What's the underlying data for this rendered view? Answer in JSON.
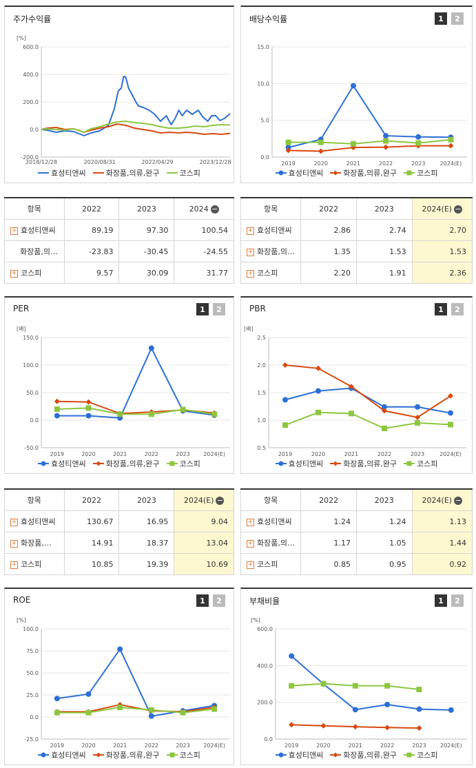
{
  "colors": {
    "blue": "#2c6fd6",
    "red": "#d9480f",
    "green": "#8cc63f"
  },
  "panels": {
    "stock": {
      "title": "주가수익률"
    },
    "div": {
      "title": "배당수익률",
      "page1": "1",
      "page2": "2"
    },
    "per": {
      "title": "PER",
      "page1": "1",
      "page2": "2"
    },
    "pbr": {
      "title": "PBR",
      "page1": "1",
      "page2": "2"
    },
    "roe": {
      "title": "ROE",
      "page1": "1",
      "page2": "2"
    },
    "debt": {
      "title": "부채비율",
      "page1": "1",
      "page2": "2"
    }
  },
  "legend": {
    "s1": "효성티앤씨",
    "s2": "화장품,의류,완구",
    "s3": "코스피"
  },
  "tables": {
    "stock": {
      "head": [
        "항목",
        "2022",
        "2023",
        "2024"
      ],
      "rows": [
        [
          "효성티앤씨",
          "89.19",
          "97.30",
          "100.54"
        ],
        [
          "화장품,의…",
          "-23.83",
          "-30.45",
          "-24.55"
        ],
        [
          "코스피",
          "9.57",
          "30.09",
          "31.77"
        ]
      ]
    },
    "div": {
      "head": [
        "항목",
        "2022",
        "2023",
        "2024(E)"
      ],
      "rows": [
        [
          "효성티앤씨",
          "2.86",
          "2.74",
          "2.70"
        ],
        [
          "화장품,의…",
          "1.35",
          "1.53",
          "1.53"
        ],
        [
          "코스피",
          "2.20",
          "1.91",
          "2.36"
        ]
      ]
    },
    "per": {
      "head": [
        "항목",
        "2022",
        "2023",
        "2024(E)"
      ],
      "rows": [
        [
          "효성티앤씨",
          "130.67",
          "16.95",
          "9.04"
        ],
        [
          "화장품,의…",
          "14.91",
          "18.37",
          "13.04"
        ],
        [
          "코스피",
          "10.85",
          "19.39",
          "10.69"
        ]
      ]
    },
    "pbr": {
      "head": [
        "항목",
        "2022",
        "2023",
        "2024(E)"
      ],
      "rows": [
        [
          "효성티앤씨",
          "1.24",
          "1.24",
          "1.13"
        ],
        [
          "화장품,의…",
          "1.17",
          "1.05",
          "1.44"
        ],
        [
          "코스피",
          "0.85",
          "0.95",
          "0.92"
        ]
      ]
    }
  },
  "chart_data": [
    {
      "id": "stock",
      "type": "line",
      "ylabel": "[%]",
      "ylim": [
        -200,
        600
      ],
      "yticks": [
        "600.0",
        "400.0",
        "200.0",
        "0.0",
        "-200.0"
      ],
      "xticks": [
        "2018/12/28",
        "2020/08/31",
        "2022/04/29",
        "2023/12/28"
      ],
      "x_range": [
        "2018-12-28",
        "2024-05-31"
      ],
      "series": [
        {
          "name": "효성티앤씨",
          "color": "#2c6fd6",
          "points": [
            [
              "2018-12-28",
              0
            ],
            [
              "2019-03-01",
              -5
            ],
            [
              "2019-06-01",
              -20
            ],
            [
              "2019-09-01",
              -10
            ],
            [
              "2019-12-01",
              -15
            ],
            [
              "2020-03-20",
              -45
            ],
            [
              "2020-06-01",
              -25
            ],
            [
              "2020-09-01",
              -10
            ],
            [
              "2020-12-01",
              30
            ],
            [
              "2021-02-01",
              150
            ],
            [
              "2021-03-15",
              280
            ],
            [
              "2021-04-15",
              300
            ],
            [
              "2021-05-10",
              385
            ],
            [
              "2021-06-01",
              380
            ],
            [
              "2021-07-01",
              300
            ],
            [
              "2021-08-01",
              260
            ],
            [
              "2021-09-15",
              200
            ],
            [
              "2021-10-15",
              170
            ],
            [
              "2021-12-01",
              160
            ],
            [
              "2022-02-01",
              140
            ],
            [
              "2022-04-01",
              110
            ],
            [
              "2022-06-01",
              60
            ],
            [
              "2022-08-01",
              100
            ],
            [
              "2022-09-20",
              35
            ],
            [
              "2022-11-01",
              80
            ],
            [
              "2022-12-10",
              140
            ],
            [
              "2023-01-15",
              100
            ],
            [
              "2023-03-01",
              140
            ],
            [
              "2023-05-01",
              110
            ],
            [
              "2023-07-01",
              140
            ],
            [
              "2023-08-20",
              90
            ],
            [
              "2023-10-10",
              60
            ],
            [
              "2023-11-20",
              100
            ],
            [
              "2024-01-01",
              100
            ],
            [
              "2024-02-15",
              65
            ],
            [
              "2024-04-01",
              80
            ],
            [
              "2024-05-31",
              115
            ]
          ]
        },
        {
          "name": "화장품,의류,완구",
          "color": "#d9480f",
          "points": [
            [
              "2018-12-28",
              0
            ],
            [
              "2019-03-01",
              10
            ],
            [
              "2019-06-01",
              15
            ],
            [
              "2019-09-01",
              0
            ],
            [
              "2019-12-01",
              5
            ],
            [
              "2020-03-20",
              -20
            ],
            [
              "2020-06-01",
              -5
            ],
            [
              "2020-09-01",
              10
            ],
            [
              "2020-12-01",
              20
            ],
            [
              "2021-03-01",
              40
            ],
            [
              "2021-06-01",
              30
            ],
            [
              "2021-09-01",
              10
            ],
            [
              "2021-12-01",
              0
            ],
            [
              "2022-03-01",
              -10
            ],
            [
              "2022-06-01",
              -25
            ],
            [
              "2022-09-01",
              -20
            ],
            [
              "2022-12-01",
              -25
            ],
            [
              "2023-03-01",
              -20
            ],
            [
              "2023-06-01",
              -25
            ],
            [
              "2023-09-01",
              -35
            ],
            [
              "2023-12-01",
              -30
            ],
            [
              "2024-03-01",
              -35
            ],
            [
              "2024-05-31",
              -28
            ]
          ]
        },
        {
          "name": "코스피",
          "color": "#8cc63f",
          "points": [
            [
              "2018-12-28",
              0
            ],
            [
              "2019-03-01",
              5
            ],
            [
              "2019-06-01",
              0
            ],
            [
              "2019-09-01",
              -5
            ],
            [
              "2019-12-01",
              5
            ],
            [
              "2020-03-20",
              -20
            ],
            [
              "2020-06-01",
              5
            ],
            [
              "2020-09-01",
              20
            ],
            [
              "2020-12-01",
              40
            ],
            [
              "2021-03-01",
              55
            ],
            [
              "2021-06-01",
              60
            ],
            [
              "2021-09-01",
              50
            ],
            [
              "2021-12-01",
              45
            ],
            [
              "2022-03-01",
              35
            ],
            [
              "2022-06-01",
              20
            ],
            [
              "2022-09-01",
              10
            ],
            [
              "2022-12-01",
              10
            ],
            [
              "2023-03-01",
              15
            ],
            [
              "2023-06-01",
              25
            ],
            [
              "2023-09-01",
              20
            ],
            [
              "2023-12-01",
              30
            ],
            [
              "2024-03-01",
              35
            ],
            [
              "2024-05-31",
              32
            ]
          ]
        }
      ]
    },
    {
      "id": "div",
      "type": "line",
      "ylabel": "",
      "ylim": [
        0,
        15
      ],
      "yticks": [
        "15.0",
        "10.0",
        "5.0",
        "0.0"
      ],
      "categories": [
        "2019",
        "2020",
        "2021",
        "2022",
        "2023",
        "2024(E)"
      ],
      "series": [
        {
          "name": "효성티앤씨",
          "color": "#2c6fd6",
          "marker": "circle",
          "values": [
            1.3,
            2.4,
            9.7,
            2.9,
            2.74,
            2.7
          ]
        },
        {
          "name": "화장품,의류,완구",
          "color": "#d9480f",
          "marker": "diamond",
          "values": [
            0.9,
            0.8,
            1.3,
            1.35,
            1.53,
            1.53
          ]
        },
        {
          "name": "코스피",
          "color": "#8cc63f",
          "marker": "square",
          "values": [
            2.0,
            2.0,
            1.8,
            2.2,
            1.91,
            2.36
          ]
        }
      ]
    },
    {
      "id": "per",
      "type": "line",
      "ylabel": "[배]",
      "ylim": [
        -50,
        150
      ],
      "yticks": [
        "150.0",
        "100.0",
        "50.0",
        "0.0",
        "-50.0"
      ],
      "categories": [
        "2019",
        "2020",
        "2021",
        "2022",
        "2023",
        "2024(E)"
      ],
      "series": [
        {
          "name": "효성티앤씨",
          "color": "#2c6fd6",
          "marker": "circle",
          "values": [
            8,
            8,
            4,
            130.67,
            16.95,
            9.04
          ]
        },
        {
          "name": "화장품,의류,완구",
          "color": "#d9480f",
          "marker": "diamond",
          "values": [
            34,
            33,
            12,
            14.91,
            18.37,
            13.04
          ]
        },
        {
          "name": "코스피",
          "color": "#8cc63f",
          "marker": "square",
          "values": [
            20,
            22,
            11,
            10.85,
            19.39,
            10.69
          ]
        }
      ]
    },
    {
      "id": "pbr",
      "type": "line",
      "ylabel": "[배]",
      "ylim": [
        0.5,
        2.5
      ],
      "yticks": [
        "2.5",
        "2.0",
        "1.5",
        "1.0",
        "0.5"
      ],
      "categories": [
        "2019",
        "2020",
        "2021",
        "2022",
        "2023",
        "2024(E)"
      ],
      "series": [
        {
          "name": "효성티앤씨",
          "color": "#2c6fd6",
          "marker": "circle",
          "values": [
            1.37,
            1.53,
            1.58,
            1.24,
            1.24,
            1.13
          ]
        },
        {
          "name": "화장품,의류,완구",
          "color": "#d9480f",
          "marker": "diamond",
          "values": [
            2.0,
            1.94,
            1.61,
            1.17,
            1.05,
            1.44
          ]
        },
        {
          "name": "코스피",
          "color": "#8cc63f",
          "marker": "square",
          "values": [
            0.91,
            1.14,
            1.12,
            0.85,
            0.95,
            0.92
          ]
        }
      ]
    },
    {
      "id": "roe",
      "type": "line",
      "ylabel": "[%]",
      "ylim": [
        -25,
        100
      ],
      "yticks": [
        "100.0",
        "75.0",
        "50.0",
        "25.0",
        "0.0",
        "-25.0"
      ],
      "categories": [
        "2019",
        "2020",
        "2021",
        "2022",
        "2023",
        "2024(E)"
      ],
      "series": [
        {
          "name": "효성티앤씨",
          "color": "#2c6fd6",
          "marker": "circle",
          "values": [
            21,
            26,
            77,
            1,
            7,
            13
          ]
        },
        {
          "name": "화장품,의류,완구",
          "color": "#d9480f",
          "marker": "diamond",
          "values": [
            6,
            6,
            14,
            7,
            6,
            11
          ]
        },
        {
          "name": "코스피",
          "color": "#8cc63f",
          "marker": "square",
          "values": [
            5,
            5,
            11,
            8,
            5,
            9
          ]
        }
      ]
    },
    {
      "id": "debt",
      "type": "line",
      "ylabel": "[%]",
      "ylim": [
        0,
        600
      ],
      "yticks": [
        "600.0",
        "400.0",
        "200.0",
        "0.0"
      ],
      "categories": [
        "2019",
        "2020",
        "2021",
        "2022",
        "2023",
        "2024(E)"
      ],
      "series": [
        {
          "name": "효성티앤씨",
          "color": "#2c6fd6",
          "marker": "circle",
          "values": [
            452,
            300,
            160,
            188,
            163,
            158
          ]
        },
        {
          "name": "화장품,의류,완구",
          "color": "#d9480f",
          "marker": "diamond",
          "values": [
            78,
            72,
            67,
            63,
            60,
            null
          ]
        },
        {
          "name": "코스피",
          "color": "#8cc63f",
          "marker": "square",
          "values": [
            290,
            302,
            290,
            290,
            270,
            null
          ]
        }
      ]
    }
  ]
}
